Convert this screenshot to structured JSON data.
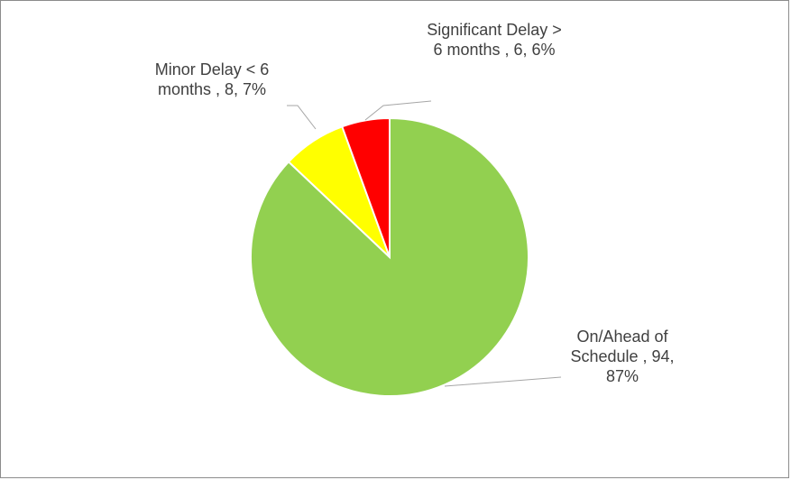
{
  "chart_data": {
    "type": "pie",
    "values": [
      94,
      8,
      6
    ],
    "value_labels": [
      "On/Ahead of Schedule , 94, 87%",
      "Minor Delay < 6 months , 8, 7%",
      "Significant Delay > 6 months , 6, 6%"
    ],
    "colors": [
      "#92d050",
      "#ffff00",
      "#ff0000"
    ],
    "start_angle": 0,
    "direction": "clockwise"
  }
}
